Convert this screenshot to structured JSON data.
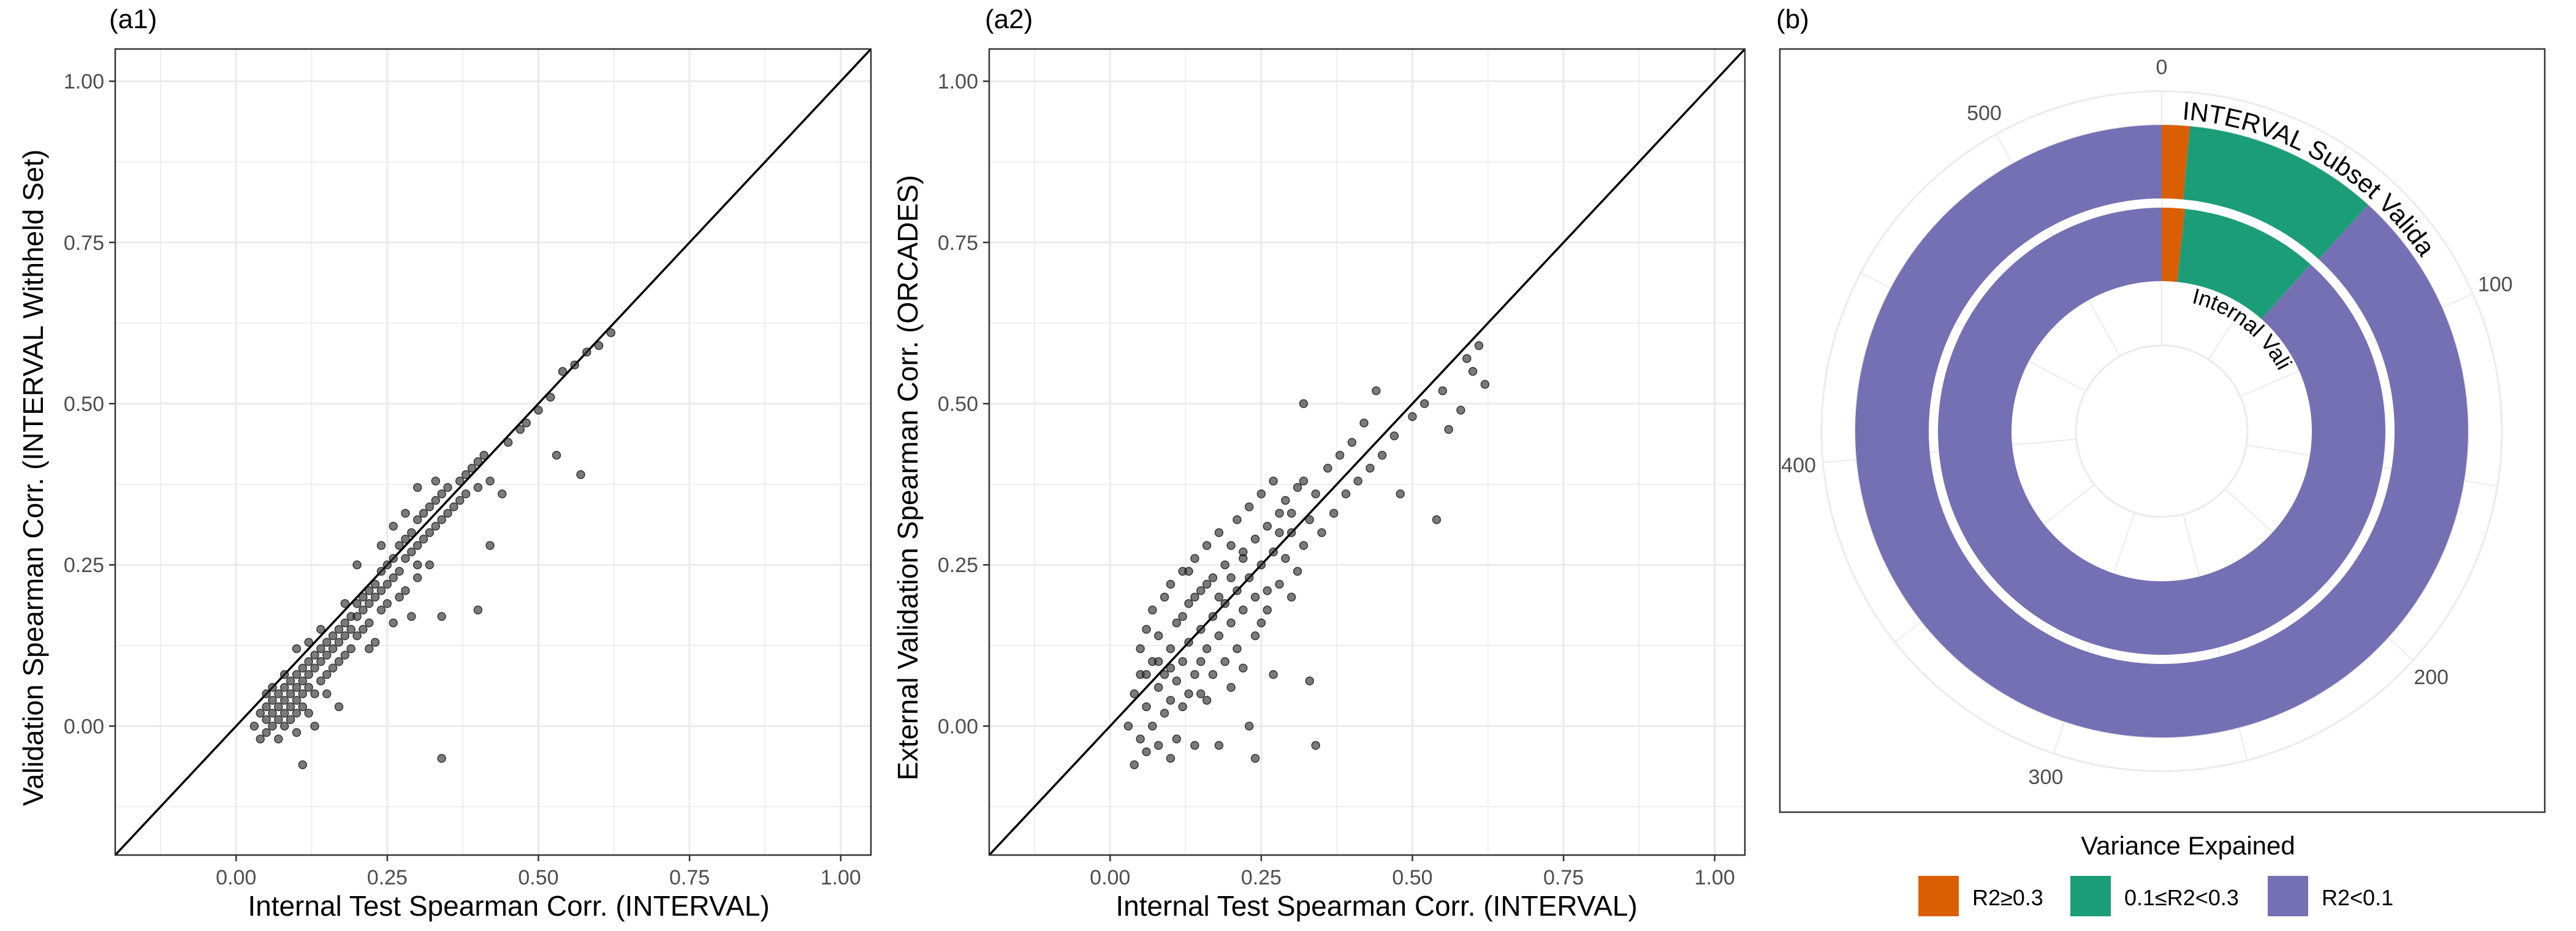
{
  "colors": {
    "high": "#d95f02",
    "mid": "#1b9e77",
    "low": "#7570b3",
    "point": "#333333",
    "grid": "#ebebeb"
  },
  "legend": {
    "title": "Variance Expained",
    "items": [
      {
        "label": "R2≥0.3",
        "color": "#d95f02"
      },
      {
        "label": "0.1≤R2<0.3",
        "color": "#1b9e77"
      },
      {
        "label": "R2<0.1",
        "color": "#7570b3"
      }
    ]
  },
  "chart_data": [
    {
      "panel": "(a1)",
      "type": "scatter",
      "xlabel": "Internal Test Spearman Corr. (INTERVAL)",
      "ylabel": "Validation Spearman Corr. (INTERVAL Withheld Set)",
      "xlim": [
        -0.2,
        1.05
      ],
      "ylim": [
        -0.2,
        1.05
      ],
      "xticks": [
        "0.00",
        "0.25",
        "0.50",
        "0.75",
        "1.00"
      ],
      "yticks": [
        "0.00",
        "0.25",
        "0.50",
        "0.75",
        "1.00"
      ],
      "tick_values": [
        0,
        0.25,
        0.5,
        0.75,
        1.0
      ],
      "grid": true,
      "reference_line": "y = x",
      "points": [
        [
          0.03,
          0.0
        ],
        [
          0.04,
          0.02
        ],
        [
          0.04,
          -0.02
        ],
        [
          0.05,
          0.03
        ],
        [
          0.05,
          0.01
        ],
        [
          0.05,
          -0.01
        ],
        [
          0.06,
          0.04
        ],
        [
          0.06,
          0.02
        ],
        [
          0.06,
          0.0
        ],
        [
          0.07,
          0.05
        ],
        [
          0.07,
          0.03
        ],
        [
          0.07,
          0.01
        ],
        [
          0.07,
          -0.02
        ],
        [
          0.08,
          0.06
        ],
        [
          0.08,
          0.04
        ],
        [
          0.08,
          0.02
        ],
        [
          0.08,
          0.0
        ],
        [
          0.09,
          0.07
        ],
        [
          0.09,
          0.05
        ],
        [
          0.09,
          0.03
        ],
        [
          0.09,
          0.01
        ],
        [
          0.1,
          0.08
        ],
        [
          0.1,
          0.06
        ],
        [
          0.1,
          0.04
        ],
        [
          0.1,
          0.02
        ],
        [
          0.1,
          -0.01
        ],
        [
          0.11,
          0.09
        ],
        [
          0.11,
          0.07
        ],
        [
          0.11,
          0.05
        ],
        [
          0.11,
          0.03
        ],
        [
          0.11,
          -0.06
        ],
        [
          0.12,
          0.1
        ],
        [
          0.12,
          0.08
        ],
        [
          0.12,
          0.06
        ],
        [
          0.12,
          0.02
        ],
        [
          0.13,
          0.11
        ],
        [
          0.13,
          0.09
        ],
        [
          0.13,
          0.05
        ],
        [
          0.13,
          0.0
        ],
        [
          0.14,
          0.12
        ],
        [
          0.14,
          0.1
        ],
        [
          0.14,
          0.07
        ],
        [
          0.15,
          0.13
        ],
        [
          0.15,
          0.11
        ],
        [
          0.15,
          0.08
        ],
        [
          0.16,
          0.14
        ],
        [
          0.16,
          0.12
        ],
        [
          0.16,
          0.09
        ],
        [
          0.17,
          0.15
        ],
        [
          0.17,
          0.13
        ],
        [
          0.17,
          0.1
        ],
        [
          0.18,
          0.16
        ],
        [
          0.18,
          0.14
        ],
        [
          0.18,
          0.11
        ],
        [
          0.19,
          0.17
        ],
        [
          0.19,
          0.15
        ],
        [
          0.19,
          0.12
        ],
        [
          0.2,
          0.19
        ],
        [
          0.2,
          0.17
        ],
        [
          0.2,
          0.14
        ],
        [
          0.21,
          0.2
        ],
        [
          0.21,
          0.18
        ],
        [
          0.21,
          0.15
        ],
        [
          0.22,
          0.21
        ],
        [
          0.22,
          0.19
        ],
        [
          0.22,
          0.16
        ],
        [
          0.23,
          0.22
        ],
        [
          0.23,
          0.2
        ],
        [
          0.23,
          0.13
        ],
        [
          0.24,
          0.24
        ],
        [
          0.24,
          0.21
        ],
        [
          0.24,
          0.18
        ],
        [
          0.25,
          0.25
        ],
        [
          0.25,
          0.22
        ],
        [
          0.25,
          0.19
        ],
        [
          0.26,
          0.26
        ],
        [
          0.26,
          0.23
        ],
        [
          0.26,
          0.16
        ],
        [
          0.27,
          0.28
        ],
        [
          0.27,
          0.24
        ],
        [
          0.27,
          0.2
        ],
        [
          0.28,
          0.29
        ],
        [
          0.28,
          0.26
        ],
        [
          0.28,
          0.21
        ],
        [
          0.29,
          0.3
        ],
        [
          0.29,
          0.27
        ],
        [
          0.29,
          0.17
        ],
        [
          0.3,
          0.32
        ],
        [
          0.3,
          0.28
        ],
        [
          0.3,
          0.23
        ],
        [
          0.31,
          0.33
        ],
        [
          0.31,
          0.29
        ],
        [
          0.32,
          0.34
        ],
        [
          0.32,
          0.3
        ],
        [
          0.32,
          0.25
        ],
        [
          0.33,
          0.35
        ],
        [
          0.33,
          0.31
        ],
        [
          0.34,
          0.36
        ],
        [
          0.34,
          0.32
        ],
        [
          0.34,
          -0.05
        ],
        [
          0.35,
          0.37
        ],
        [
          0.35,
          0.33
        ],
        [
          0.36,
          0.34
        ],
        [
          0.37,
          0.38
        ],
        [
          0.37,
          0.35
        ],
        [
          0.38,
          0.39
        ],
        [
          0.38,
          0.36
        ],
        [
          0.39,
          0.4
        ],
        [
          0.4,
          0.41
        ],
        [
          0.4,
          0.37
        ],
        [
          0.41,
          0.42
        ],
        [
          0.42,
          0.38
        ],
        [
          0.44,
          0.36
        ],
        [
          0.45,
          0.44
        ],
        [
          0.47,
          0.46
        ],
        [
          0.48,
          0.47
        ],
        [
          0.5,
          0.49
        ],
        [
          0.52,
          0.51
        ],
        [
          0.53,
          0.42
        ],
        [
          0.54,
          0.55
        ],
        [
          0.56,
          0.56
        ],
        [
          0.57,
          0.39
        ],
        [
          0.58,
          0.58
        ],
        [
          0.6,
          0.59
        ],
        [
          0.62,
          0.61
        ],
        [
          0.3,
          0.25
        ],
        [
          0.26,
          0.31
        ],
        [
          0.2,
          0.25
        ],
        [
          0.34,
          0.17
        ],
        [
          0.4,
          0.18
        ],
        [
          0.42,
          0.28
        ],
        [
          0.22,
          0.12
        ],
        [
          0.15,
          0.05
        ],
        [
          0.17,
          0.03
        ],
        [
          0.1,
          0.12
        ],
        [
          0.08,
          0.08
        ],
        [
          0.06,
          0.06
        ],
        [
          0.05,
          0.05
        ],
        [
          0.12,
          0.13
        ],
        [
          0.14,
          0.15
        ],
        [
          0.18,
          0.19
        ],
        [
          0.24,
          0.28
        ],
        [
          0.28,
          0.33
        ],
        [
          0.3,
          0.37
        ],
        [
          0.33,
          0.38
        ]
      ]
    },
    {
      "panel": "(a2)",
      "type": "scatter",
      "xlabel": "Internal Test Spearman Corr. (INTERVAL)",
      "ylabel": "External Validation Spearman Corr. (ORCADES)",
      "xlim": [
        -0.2,
        1.05
      ],
      "ylim": [
        -0.2,
        1.05
      ],
      "xticks": [
        "0.00",
        "0.25",
        "0.50",
        "0.75",
        "1.00"
      ],
      "yticks": [
        "0.00",
        "0.25",
        "0.50",
        "0.75",
        "1.00"
      ],
      "tick_values": [
        0,
        0.25,
        0.5,
        0.75,
        1.0
      ],
      "grid": true,
      "reference_line": "y = x",
      "points": [
        [
          0.03,
          0.0
        ],
        [
          0.04,
          0.05
        ],
        [
          0.04,
          -0.06
        ],
        [
          0.05,
          0.08
        ],
        [
          0.05,
          -0.02
        ],
        [
          0.05,
          0.12
        ],
        [
          0.06,
          0.03
        ],
        [
          0.06,
          -0.04
        ],
        [
          0.06,
          0.15
        ],
        [
          0.07,
          0.1
        ],
        [
          0.07,
          0.0
        ],
        [
          0.07,
          0.18
        ],
        [
          0.08,
          0.06
        ],
        [
          0.08,
          -0.03
        ],
        [
          0.08,
          0.14
        ],
        [
          0.09,
          0.2
        ],
        [
          0.09,
          0.08
        ],
        [
          0.09,
          0.02
        ],
        [
          0.1,
          0.12
        ],
        [
          0.1,
          0.04
        ],
        [
          0.1,
          -0.05
        ],
        [
          0.1,
          0.22
        ],
        [
          0.11,
          0.16
        ],
        [
          0.11,
          0.07
        ],
        [
          0.11,
          -0.02
        ],
        [
          0.12,
          0.24
        ],
        [
          0.12,
          0.1
        ],
        [
          0.12,
          0.03
        ],
        [
          0.13,
          0.19
        ],
        [
          0.13,
          0.13
        ],
        [
          0.13,
          0.05
        ],
        [
          0.14,
          0.26
        ],
        [
          0.14,
          0.08
        ],
        [
          0.14,
          -0.03
        ],
        [
          0.15,
          0.21
        ],
        [
          0.15,
          0.15
        ],
        [
          0.15,
          0.1
        ],
        [
          0.16,
          0.28
        ],
        [
          0.16,
          0.12
        ],
        [
          0.16,
          0.04
        ],
        [
          0.17,
          0.23
        ],
        [
          0.17,
          0.17
        ],
        [
          0.17,
          0.08
        ],
        [
          0.18,
          0.3
        ],
        [
          0.18,
          0.14
        ],
        [
          0.18,
          -0.03
        ],
        [
          0.19,
          0.25
        ],
        [
          0.19,
          0.19
        ],
        [
          0.19,
          0.1
        ],
        [
          0.2,
          0.28
        ],
        [
          0.2,
          0.16
        ],
        [
          0.2,
          0.06
        ],
        [
          0.21,
          0.32
        ],
        [
          0.21,
          0.21
        ],
        [
          0.21,
          0.12
        ],
        [
          0.22,
          0.26
        ],
        [
          0.22,
          0.18
        ],
        [
          0.22,
          0.09
        ],
        [
          0.23,
          0.34
        ],
        [
          0.23,
          0.23
        ],
        [
          0.23,
          0.0
        ],
        [
          0.24,
          0.29
        ],
        [
          0.24,
          0.14
        ],
        [
          0.24,
          -0.05
        ],
        [
          0.25,
          0.36
        ],
        [
          0.25,
          0.25
        ],
        [
          0.25,
          0.16
        ],
        [
          0.26,
          0.31
        ],
        [
          0.26,
          0.21
        ],
        [
          0.27,
          0.38
        ],
        [
          0.27,
          0.27
        ],
        [
          0.27,
          0.08
        ],
        [
          0.28,
          0.33
        ],
        [
          0.28,
          0.22
        ],
        [
          0.29,
          0.35
        ],
        [
          0.29,
          0.26
        ],
        [
          0.3,
          0.3
        ],
        [
          0.3,
          0.2
        ],
        [
          0.31,
          0.37
        ],
        [
          0.31,
          0.24
        ],
        [
          0.32,
          0.38
        ],
        [
          0.32,
          0.28
        ],
        [
          0.32,
          0.5
        ],
        [
          0.33,
          0.32
        ],
        [
          0.33,
          0.07
        ],
        [
          0.34,
          0.36
        ],
        [
          0.34,
          -0.03
        ],
        [
          0.35,
          0.3
        ],
        [
          0.36,
          0.4
        ],
        [
          0.37,
          0.33
        ],
        [
          0.38,
          0.42
        ],
        [
          0.39,
          0.36
        ],
        [
          0.4,
          0.44
        ],
        [
          0.41,
          0.38
        ],
        [
          0.42,
          0.47
        ],
        [
          0.43,
          0.4
        ],
        [
          0.44,
          0.52
        ],
        [
          0.45,
          0.42
        ],
        [
          0.47,
          0.45
        ],
        [
          0.48,
          0.36
        ],
        [
          0.5,
          0.48
        ],
        [
          0.52,
          0.5
        ],
        [
          0.54,
          0.32
        ],
        [
          0.55,
          0.52
        ],
        [
          0.56,
          0.46
        ],
        [
          0.58,
          0.49
        ],
        [
          0.59,
          0.57
        ],
        [
          0.6,
          0.55
        ],
        [
          0.61,
          0.59
        ],
        [
          0.62,
          0.53
        ],
        [
          0.14,
          0.2
        ],
        [
          0.16,
          0.22
        ],
        [
          0.12,
          0.17
        ],
        [
          0.1,
          0.09
        ],
        [
          0.08,
          0.1
        ],
        [
          0.06,
          0.08
        ],
        [
          0.2,
          0.23
        ],
        [
          0.24,
          0.2
        ],
        [
          0.28,
          0.3
        ],
        [
          0.3,
          0.33
        ],
        [
          0.22,
          0.27
        ],
        [
          0.26,
          0.18
        ],
        [
          0.18,
          0.2
        ],
        [
          0.15,
          0.05
        ],
        [
          0.13,
          0.24
        ]
      ]
    },
    {
      "panel": "(b)",
      "type": "pie",
      "subtype": "concentric donut (polar bar)",
      "rings": [
        {
          "name": "INTERVAL Subset Validation",
          "values": [
            {
              "category": "R2≥0.3",
              "count": 8
            },
            {
              "category": "0.1≤R2<0.3",
              "count": 56
            },
            {
              "category": "R2<0.1",
              "count": 480
            }
          ]
        },
        {
          "name": "Internal Validation",
          "values": [
            {
              "category": "R2≥0.3",
              "count": 9
            },
            {
              "category": "0.1≤R2<0.3",
              "count": 54
            },
            {
              "category": "R2<0.1",
              "count": 481
            }
          ]
        }
      ],
      "theta_ticks": [
        "0",
        "100",
        "200",
        "300",
        "400",
        "500"
      ],
      "theta_tick_values": [
        0,
        100,
        200,
        300,
        400,
        500
      ],
      "total": 544
    }
  ]
}
